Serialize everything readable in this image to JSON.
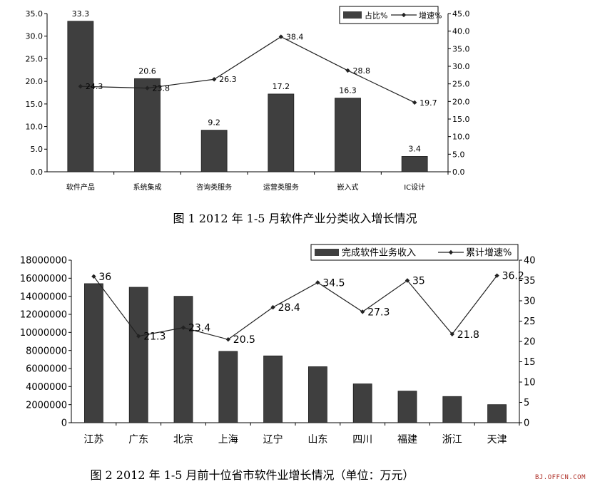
{
  "chart_data": [
    {
      "type": "bar",
      "title": "图 1 2012 年 1-5 月软件产业分类收入增长情况",
      "categories": [
        "软件产品",
        "系统集成",
        "咨询类服务",
        "运营类服务",
        "嵌入式",
        "IC设计"
      ],
      "series": [
        {
          "name": "占比%",
          "type": "bar",
          "axis": "left",
          "values": [
            33.3,
            20.6,
            9.2,
            17.2,
            16.3,
            3.4
          ]
        },
        {
          "name": "增速%",
          "type": "line",
          "axis": "right",
          "values": [
            24.3,
            23.8,
            26.3,
            38.4,
            28.8,
            19.7
          ],
          "labels": [
            "24.3",
            "23.8",
            "26.3",
            "38.4",
            "28.8",
            "19.7"
          ]
        }
      ],
      "ylim": [
        0,
        35
      ],
      "yticks": [
        "0.0",
        "5.0",
        "10.0",
        "15.0",
        "20.0",
        "25.0",
        "30.0",
        "35.0"
      ],
      "y2lim": [
        0,
        45
      ],
      "y2ticks": [
        "0.0",
        "5.0",
        "10.0",
        "15.0",
        "20.0",
        "25.0",
        "30.0",
        "35.0",
        "40.0",
        "45.0"
      ],
      "legend": "top-right",
      "grid": false
    },
    {
      "type": "bar",
      "title": "图 2 2012 年 1-5 月前十位省市软件业增长情况（单位：万元）",
      "categories": [
        "江苏",
        "广东",
        "北京",
        "上海",
        "辽宁",
        "山东",
        "四川",
        "福建",
        "浙江",
        "天津"
      ],
      "series": [
        {
          "name": "完成软件业务收入",
          "type": "bar",
          "axis": "left",
          "values": [
            15400000,
            15000000,
            14000000,
            7900000,
            7400000,
            6200000,
            4300000,
            3500000,
            2900000,
            2000000
          ]
        },
        {
          "name": "累计增速%",
          "type": "line",
          "axis": "right",
          "values": [
            36,
            21.3,
            23.4,
            20.5,
            28.4,
            34.5,
            27.3,
            35,
            21.8,
            36.2
          ],
          "labels": [
            "36",
            "21.3",
            "23.4",
            "20.5",
            "28.4",
            "34.5",
            "27.3",
            "35",
            "21.8",
            "36.2"
          ]
        }
      ],
      "ylim": [
        0,
        18000000
      ],
      "yticks": [
        "0",
        "2000000",
        "4000000",
        "6000000",
        "8000000",
        "10000000",
        "12000000",
        "14000000",
        "16000000",
        "18000000"
      ],
      "y2lim": [
        0,
        40
      ],
      "y2ticks": [
        "0",
        "5",
        "10",
        "15",
        "20",
        "25",
        "30",
        "35",
        "40"
      ],
      "legend": "top-right",
      "grid": false
    }
  ],
  "captions": {
    "chart1": "图 1 2012 年 1-5 月软件产业分类收入增长情况",
    "chart2": "图 2 2012 年 1-5 月前十位省市软件业增长情况（单位：万元）"
  },
  "watermark": "BJ.OFFCN.COM",
  "colors": {
    "bar": "#3f3f3f",
    "line": "#222222",
    "axis": "#000000"
  }
}
